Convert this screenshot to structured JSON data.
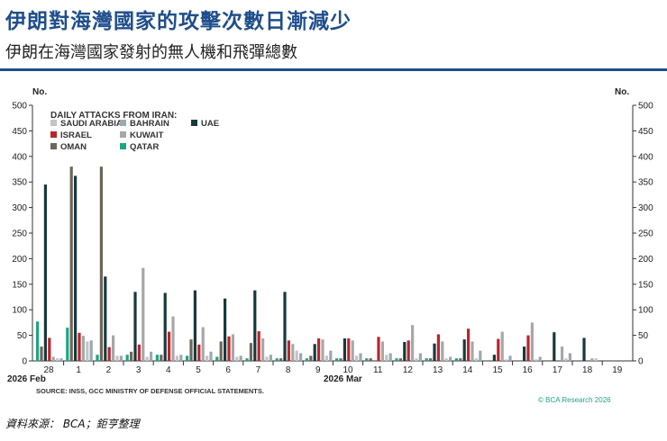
{
  "headline": "伊朗對海灣國家的攻擊次數日漸減少",
  "subheadline": "伊朗在海灣國家發射的無人機和飛彈總數",
  "source_credit": "資料來源： BCA；鉅亨整理",
  "chart_data": {
    "type": "bar",
    "ylabel_left": "No.",
    "ylabel_right": "No.",
    "ylim": [
      0,
      500
    ],
    "yticks": [
      0,
      50,
      100,
      150,
      200,
      250,
      300,
      350,
      400,
      450,
      500
    ],
    "legend_title": "DAILY ATTACKS FROM IRAN:",
    "legend_placement": "top-left",
    "grid": false,
    "categories": [
      "28",
      "1",
      "2",
      "3",
      "4",
      "5",
      "6",
      "7",
      "8",
      "9",
      "10",
      "11",
      "12",
      "13",
      "14",
      "15",
      "16",
      "17",
      "18",
      "19"
    ],
    "x_month_labels": [
      "2026 Feb",
      "2026 Mar"
    ],
    "series": [
      {
        "name": "SAUDI ARABIA",
        "color": "#c4c4c4",
        "values": [
          5,
          38,
          10,
          8,
          10,
          10,
          8,
          8,
          20,
          10,
          10,
          12,
          5,
          5,
          5,
          3,
          3,
          5,
          5,
          0
        ]
      },
      {
        "name": "BAHRAIN",
        "color": "#9aa8b2",
        "values": [
          5,
          40,
          10,
          18,
          12,
          18,
          10,
          12,
          15,
          20,
          15,
          15,
          15,
          8,
          20,
          10,
          8,
          15,
          0,
          0
        ]
      },
      {
        "name": "UAE",
        "color": "#17393d",
        "values": [
          345,
          362,
          165,
          135,
          133,
          138,
          122,
          138,
          135,
          33,
          44,
          0,
          37,
          34,
          42,
          12,
          28,
          56,
          45,
          0
        ]
      },
      {
        "name": "ISRAEL",
        "color": "#b8262d",
        "values": [
          45,
          55,
          27,
          32,
          57,
          32,
          48,
          58,
          40,
          44,
          44,
          47,
          40,
          52,
          63,
          43,
          50,
          0,
          0,
          0
        ]
      },
      {
        "name": "KUWAIT",
        "color": "#a7a7a7",
        "values": [
          8,
          49,
          50,
          182,
          87,
          66,
          52,
          44,
          33,
          42,
          40,
          38,
          70,
          38,
          38,
          57,
          75,
          28,
          5,
          0
        ]
      },
      {
        "name": "OMAN",
        "color": "#6d6558",
        "values": [
          28,
          380,
          380,
          18,
          12,
          42,
          38,
          35,
          5,
          10,
          5,
          5,
          5,
          5,
          5,
          0,
          0,
          0,
          0,
          0
        ]
      },
      {
        "name": "QATAR",
        "color": "#1ca584",
        "values": [
          77,
          65,
          12,
          12,
          12,
          10,
          8,
          5,
          5,
          5,
          5,
          5,
          5,
          5,
          5,
          0,
          0,
          0,
          0,
          0
        ]
      }
    ],
    "source_note": "SOURCE: INSS, GCC MINISTRY OF DEFENSE OFFICIAL STATEMENTS.",
    "copyright": "© BCA Research 2026"
  }
}
